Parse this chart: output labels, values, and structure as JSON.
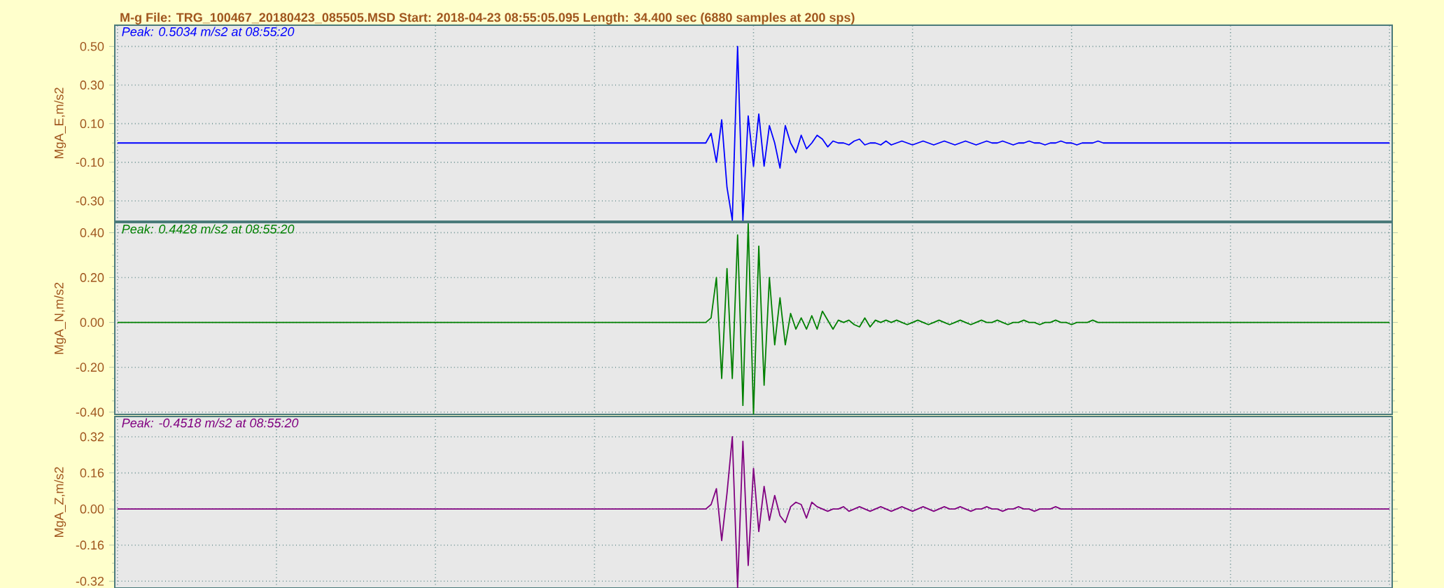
{
  "chart_data": [
    {
      "type": "line",
      "title": "M-g    File: TRG_100467_20180423_085505.MSD  Start: 2018-04-23 08:55:05.095  Length: 34.400 sec (6880 samples at 200 sps)",
      "ylabel": "MgA_E,m/s2",
      "annotations": [
        "Peak: 0.5034 m/s2 at 08:55:20"
      ],
      "grid": true,
      "tick_labels": "y",
      "ylim": [
        -0.405,
        0.61
      ],
      "yticks": [
        {
          "value": 0.5,
          "label": "0.50"
        },
        {
          "value": 0.3,
          "label": "0.30"
        },
        {
          "value": 0.1,
          "label": "0.10"
        },
        {
          "value": -0.1,
          "label": "-0.10"
        },
        {
          "value": -0.3,
          "label": "-0.30"
        }
      ],
      "categories": [
        null,
        null,
        null,
        null,
        null,
        null,
        null,
        null,
        null,
        null,
        null,
        null,
        null,
        null,
        null,
        null,
        null,
        null,
        null,
        null,
        null,
        null,
        null,
        null,
        null,
        null,
        null,
        null,
        null,
        null,
        null,
        null,
        null,
        null,
        null,
        null,
        null,
        null,
        null,
        null,
        null,
        null,
        null,
        null,
        null,
        null,
        null,
        null,
        null,
        null,
        null,
        null,
        null,
        null,
        null,
        null,
        null,
        null,
        null,
        null,
        null,
        null,
        null,
        null,
        null,
        null,
        null,
        null,
        null,
        null,
        null,
        null,
        null,
        null,
        null,
        null,
        null,
        null,
        null,
        null,
        null,
        null,
        null,
        null,
        null,
        null,
        null,
        null,
        null,
        null,
        null,
        null,
        null,
        null,
        null,
        null,
        null,
        null,
        null,
        null,
        null,
        null,
        null,
        null,
        null,
        null,
        null,
        null,
        null,
        null,
        null,
        null,
        null,
        null,
        null,
        null,
        null,
        null,
        null,
        null,
        null,
        null,
        null,
        null,
        null,
        null,
        null,
        null,
        null,
        null,
        null,
        null,
        null,
        null,
        null,
        null,
        null,
        null,
        null,
        null,
        null,
        null,
        null,
        null,
        null,
        null,
        null,
        null,
        null,
        null,
        null,
        null,
        null,
        null,
        null,
        null,
        null,
        null,
        null,
        null,
        null,
        null,
        null,
        null,
        null,
        null,
        null,
        null,
        null,
        null,
        null,
        null,
        null,
        null,
        null,
        null,
        null,
        null,
        null,
        null,
        null,
        null,
        null,
        null,
        null,
        null,
        null,
        null,
        null,
        null,
        null,
        null,
        null,
        null,
        null,
        null,
        null,
        null,
        null,
        null,
        null,
        null,
        null,
        null,
        null,
        null,
        null,
        null,
        null,
        null,
        null,
        null,
        null,
        null,
        null,
        null,
        null,
        null,
        null,
        null,
        null,
        null,
        null,
        null,
        null,
        null,
        null,
        null,
        null,
        null,
        null,
        null,
        null,
        null,
        null,
        null,
        null,
        null,
        null,
        null,
        null
      ],
      "series": [
        {
          "color": "#0000ff",
          "values": [
            0,
            0,
            0,
            0,
            0,
            0,
            0,
            0,
            0,
            0,
            0,
            0,
            0,
            0,
            0,
            0,
            0,
            0,
            0,
            0,
            0,
            0,
            0,
            0,
            0,
            0,
            0,
            0,
            0,
            0,
            0,
            0,
            0,
            0,
            0,
            0,
            0,
            0,
            0,
            0,
            0,
            0,
            0,
            0,
            0,
            0,
            0,
            0,
            0,
            0,
            0,
            0,
            0,
            0,
            0,
            0,
            0,
            0,
            0,
            0,
            0,
            0,
            0,
            0,
            0,
            0,
            0,
            0,
            0,
            0,
            0,
            0,
            0,
            0,
            0,
            0,
            0,
            0,
            0,
            0,
            0,
            0,
            0,
            0,
            0,
            0,
            0,
            0,
            0,
            0,
            0,
            0,
            0,
            0,
            0,
            0,
            0,
            0,
            0,
            0,
            0,
            0,
            0,
            0,
            0,
            0,
            0,
            0,
            0,
            0,
            0,
            0,
            0.05,
            -0.1,
            0.12,
            -0.23,
            -0.4,
            0.5,
            -0.4,
            0.14,
            -0.12,
            0.15,
            -0.12,
            0.09,
            0.0,
            -0.13,
            0.09,
            0.0,
            -0.05,
            0.04,
            -0.03,
            0.0,
            0.04,
            0.02,
            -0.02,
            0.01,
            0.0,
            0.0,
            -0.01,
            0.01,
            0.02,
            -0.01,
            0.0,
            0.0,
            -0.01,
            0.01,
            -0.01,
            0,
            0.01,
            0,
            -0.01,
            0,
            0.01,
            0,
            -0.01,
            0,
            0.01,
            0,
            -0.01,
            0,
            0.01,
            0,
            -0.01,
            0,
            0.01,
            0,
            0,
            0.01,
            0,
            -0.01,
            0,
            0,
            0.01,
            0,
            0,
            -0.01,
            0,
            0,
            0.01,
            0,
            0,
            -0.01,
            0,
            0,
            0,
            0.01,
            0,
            0,
            0,
            0,
            0,
            0,
            0,
            0,
            0,
            0,
            0,
            0,
            0,
            0,
            0,
            0,
            0,
            0,
            0,
            0,
            0,
            0,
            0,
            0,
            0,
            0,
            0,
            0,
            0,
            0,
            0,
            0,
            0,
            0,
            0,
            0,
            0,
            0,
            0,
            0,
            0,
            0,
            0,
            0,
            0,
            0,
            0,
            0,
            0,
            0,
            0,
            0,
            0,
            0,
            0
          ]
        }
      ]
    },
    {
      "type": "line",
      "ylabel": "MgA_N,m/s2",
      "annotations": [
        "Peak: 0.4428 m/s2 at 08:55:20"
      ],
      "grid": true,
      "tick_labels": "y",
      "ylim": [
        -0.41,
        0.445
      ],
      "yticks": [
        {
          "value": 0.4,
          "label": "0.40"
        },
        {
          "value": 0.2,
          "label": "0.20"
        },
        {
          "value": 0,
          "label": "0.00"
        },
        {
          "value": -0.2,
          "label": "-0.20"
        },
        {
          "value": -0.4,
          "label": "-0.40"
        }
      ],
      "categories": [
        null,
        null,
        null,
        null,
        null,
        null,
        null,
        null,
        null,
        null,
        null,
        null,
        null,
        null,
        null,
        null,
        null,
        null,
        null,
        null,
        null,
        null,
        null,
        null,
        null,
        null,
        null,
        null,
        null,
        null,
        null,
        null,
        null,
        null,
        null,
        null,
        null,
        null,
        null,
        null,
        null,
        null,
        null,
        null,
        null,
        null,
        null,
        null,
        null,
        null,
        null,
        null,
        null,
        null,
        null,
        null,
        null,
        null,
        null,
        null,
        null,
        null,
        null,
        null,
        null,
        null,
        null,
        null,
        null,
        null,
        null,
        null,
        null,
        null,
        null,
        null,
        null,
        null,
        null,
        null,
        null,
        null,
        null,
        null,
        null,
        null,
        null,
        null,
        null,
        null,
        null,
        null,
        null,
        null,
        null,
        null,
        null,
        null,
        null,
        null,
        null,
        null,
        null,
        null,
        null,
        null,
        null,
        null,
        null,
        null,
        null,
        null,
        null,
        null,
        null,
        null,
        null,
        null,
        null,
        null,
        null,
        null,
        null,
        null,
        null,
        null,
        null,
        null,
        null,
        null,
        null,
        null,
        null,
        null,
        null,
        null,
        null,
        null,
        null,
        null,
        null,
        null,
        null,
        null,
        null,
        null,
        null,
        null,
        null,
        null,
        null,
        null,
        null,
        null,
        null,
        null,
        null,
        null,
        null,
        null,
        null,
        null,
        null,
        null,
        null,
        null,
        null,
        null,
        null,
        null,
        null,
        null,
        null,
        null,
        null,
        null,
        null,
        null,
        null,
        null,
        null,
        null,
        null,
        null,
        null,
        null,
        null,
        null,
        null,
        null,
        null,
        null,
        null,
        null,
        null,
        null,
        null,
        null,
        null,
        null,
        null,
        null,
        null,
        null,
        null,
        null,
        null,
        null,
        null,
        null,
        null,
        null,
        null,
        null,
        null,
        null,
        null,
        null,
        null,
        null,
        null,
        null,
        null,
        null,
        null,
        null,
        null,
        null,
        null,
        null,
        null,
        null,
        null,
        null,
        null,
        null,
        null,
        null,
        null,
        null,
        null
      ],
      "series": [
        {
          "color": "#008000",
          "values": [
            0,
            0,
            0,
            0,
            0,
            0,
            0,
            0,
            0,
            0,
            0,
            0,
            0,
            0,
            0,
            0,
            0,
            0,
            0,
            0,
            0,
            0,
            0,
            0,
            0,
            0,
            0,
            0,
            0,
            0,
            0,
            0,
            0,
            0,
            0,
            0,
            0,
            0,
            0,
            0,
            0,
            0,
            0,
            0,
            0,
            0,
            0,
            0,
            0,
            0,
            0,
            0,
            0,
            0,
            0,
            0,
            0,
            0,
            0,
            0,
            0,
            0,
            0,
            0,
            0,
            0,
            0,
            0,
            0,
            0,
            0,
            0,
            0,
            0,
            0,
            0,
            0,
            0,
            0,
            0,
            0,
            0,
            0,
            0,
            0,
            0,
            0,
            0,
            0,
            0,
            0,
            0,
            0,
            0,
            0,
            0,
            0,
            0,
            0,
            0,
            0,
            0,
            0,
            0,
            0,
            0,
            0,
            0,
            0,
            0,
            0,
            0,
            0.02,
            0.2,
            -0.25,
            0.24,
            -0.25,
            0.39,
            -0.37,
            0.44,
            -0.41,
            0.34,
            -0.28,
            0.2,
            -0.1,
            0.11,
            -0.1,
            0.04,
            -0.03,
            0.02,
            -0.03,
            0.03,
            -0.03,
            0.05,
            0.01,
            -0.03,
            0.01,
            0.0,
            0.01,
            -0.01,
            -0.02,
            0.02,
            -0.02,
            0.01,
            0.0,
            0.01,
            0,
            0.01,
            0,
            -0.01,
            0,
            0.01,
            0,
            -0.01,
            0,
            0.01,
            0,
            -0.01,
            0,
            0.01,
            0,
            -0.01,
            0,
            0.01,
            0,
            0,
            0.01,
            0,
            -0.01,
            0,
            0,
            0.01,
            0,
            0,
            -0.01,
            0,
            0,
            0.01,
            0,
            0,
            -0.01,
            0,
            0,
            0,
            0.01,
            0,
            0,
            0,
            0,
            0,
            0,
            0,
            0,
            0,
            0,
            0,
            0,
            0,
            0,
            0,
            0,
            0,
            0,
            0,
            0,
            0,
            0,
            0,
            0,
            0,
            0,
            0,
            0,
            0,
            0,
            0,
            0,
            0,
            0,
            0,
            0,
            0,
            0,
            0,
            0,
            0,
            0,
            0,
            0,
            0,
            0,
            0,
            0,
            0,
            0,
            0,
            0,
            0,
            0,
            0,
            0
          ]
        }
      ]
    },
    {
      "type": "line",
      "ylabel": "MgA_Z,m/s2",
      "annotations": [
        "Peak: -0.4518 m/s2 at 08:55:20"
      ],
      "grid": true,
      "tick_labels": "y",
      "ylim": [
        -0.35,
        0.41
      ],
      "yticks": [
        {
          "value": 0.32,
          "label": "0.32"
        },
        {
          "value": 0.16,
          "label": "0.16"
        },
        {
          "value": 0,
          "label": "0.00"
        },
        {
          "value": -0.16,
          "label": "-0.16"
        },
        {
          "value": -0.32,
          "label": "-0.32"
        }
      ],
      "categories": [
        null,
        null,
        null,
        null,
        null,
        null,
        null,
        null,
        null,
        null,
        null,
        null,
        null,
        null,
        null,
        null,
        null,
        null,
        null,
        null,
        null,
        null,
        null,
        null,
        null,
        null,
        null,
        null,
        null,
        null,
        null,
        null,
        null,
        null,
        null,
        null,
        null,
        null,
        null,
        null,
        null,
        null,
        null,
        null,
        null,
        null,
        null,
        null,
        null,
        null,
        null,
        null,
        null,
        null,
        null,
        null,
        null,
        null,
        null,
        null,
        null,
        null,
        null,
        null,
        null,
        null,
        null,
        null,
        null,
        null,
        null,
        null,
        null,
        null,
        null,
        null,
        null,
        null,
        null,
        null,
        null,
        null,
        null,
        null,
        null,
        null,
        null,
        null,
        null,
        null,
        null,
        null,
        null,
        null,
        null,
        null,
        null,
        null,
        null,
        null,
        null,
        null,
        null,
        null,
        null,
        null,
        null,
        null,
        null,
        null,
        null,
        null,
        null,
        null,
        null,
        null,
        null,
        null,
        null,
        null,
        null,
        null,
        null,
        null,
        null,
        null,
        null,
        null,
        null,
        null,
        null,
        null,
        null,
        null,
        null,
        null,
        null,
        null,
        null,
        null,
        null,
        null,
        null,
        null,
        null,
        null,
        null,
        null,
        null,
        null,
        null,
        null,
        null,
        null,
        null,
        null,
        null,
        null,
        null,
        null,
        null,
        null,
        null,
        null,
        null,
        null,
        null,
        null,
        null,
        null,
        null,
        null,
        null,
        null,
        null,
        null,
        null,
        null,
        null,
        null,
        null,
        null,
        null,
        null,
        null,
        null,
        null,
        null,
        null,
        null,
        null,
        null,
        null,
        null,
        null,
        null,
        null,
        null,
        null,
        null,
        null,
        null,
        null,
        null,
        null,
        null,
        null,
        null,
        null,
        null,
        null,
        null,
        null,
        null,
        null,
        null,
        null,
        null,
        null,
        null,
        null,
        null,
        null,
        null,
        null,
        null,
        null,
        null,
        null,
        null,
        null,
        null,
        null,
        null,
        null,
        null,
        null,
        null,
        null,
        null,
        null
      ],
      "series": [
        {
          "color": "#800080",
          "values": [
            0,
            0,
            0,
            0,
            0,
            0,
            0,
            0,
            0,
            0,
            0,
            0,
            0,
            0,
            0,
            0,
            0,
            0,
            0,
            0,
            0,
            0,
            0,
            0,
            0,
            0,
            0,
            0,
            0,
            0,
            0,
            0,
            0,
            0,
            0,
            0,
            0,
            0,
            0,
            0,
            0,
            0,
            0,
            0,
            0,
            0,
            0,
            0,
            0,
            0,
            0,
            0,
            0,
            0,
            0,
            0,
            0,
            0,
            0,
            0,
            0,
            0,
            0,
            0,
            0,
            0,
            0,
            0,
            0,
            0,
            0,
            0,
            0,
            0,
            0,
            0,
            0,
            0,
            0,
            0,
            0,
            0,
            0,
            0,
            0,
            0,
            0,
            0,
            0,
            0,
            0,
            0,
            0,
            0,
            0,
            0,
            0,
            0,
            0,
            0,
            0,
            0,
            0,
            0,
            0,
            0,
            0,
            0,
            0,
            0,
            0,
            0,
            0.02,
            0.09,
            -0.14,
            0.07,
            0.32,
            -0.35,
            0.3,
            -0.25,
            0.18,
            -0.1,
            0.1,
            -0.05,
            0.06,
            -0.03,
            -0.06,
            0.01,
            0.03,
            0.02,
            -0.04,
            0.03,
            0.01,
            0.0,
            -0.01,
            0.0,
            0.0,
            0.01,
            -0.01,
            0,
            0.01,
            0,
            -0.01,
            0,
            0.01,
            0,
            -0.01,
            0,
            0.01,
            0,
            -0.01,
            0,
            0.01,
            0,
            -0.01,
            0,
            0.01,
            0,
            0,
            0.01,
            0,
            -0.01,
            0,
            0,
            0.01,
            0,
            0,
            -0.01,
            0,
            0,
            0.01,
            0,
            0,
            -0.01,
            0,
            0,
            0,
            0.01,
            0,
            0,
            0,
            0,
            0,
            0,
            0,
            0,
            0,
            0,
            0,
            0,
            0,
            0,
            0,
            0,
            0,
            0,
            0,
            0,
            0,
            0,
            0,
            0,
            0,
            0,
            0,
            0,
            0,
            0,
            0,
            0,
            0,
            0,
            0,
            0,
            0,
            0,
            0,
            0,
            0,
            0,
            0,
            0,
            0,
            0,
            0,
            0,
            0,
            0,
            0,
            0,
            0,
            0,
            0,
            0,
            0,
            0,
            0,
            0,
            0,
            0,
            0
          ]
        }
      ]
    }
  ]
}
